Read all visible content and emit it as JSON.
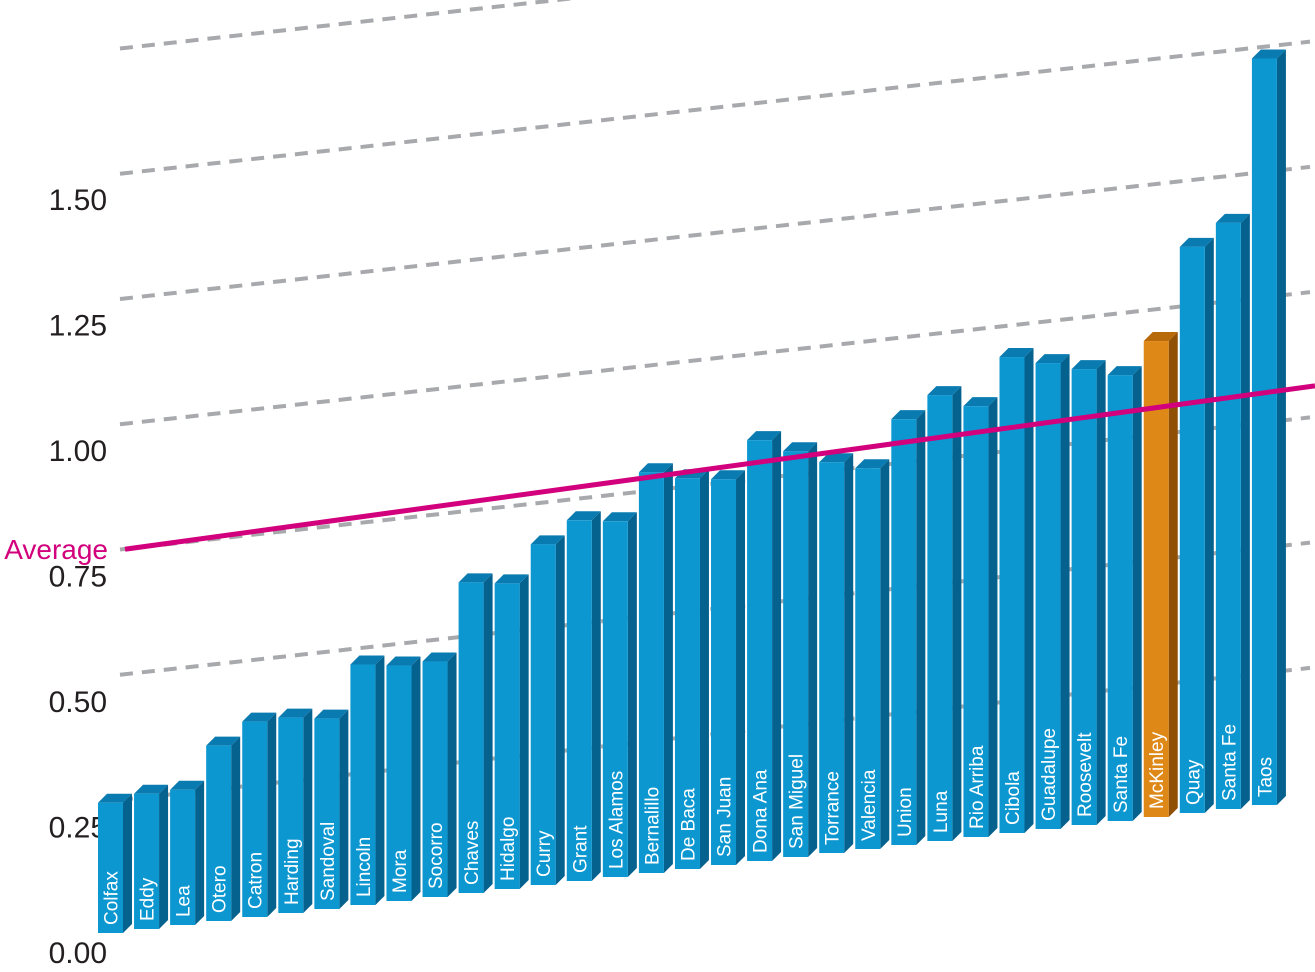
{
  "chart_data": {
    "type": "bar",
    "categories": [
      "Colfax",
      "Eddy",
      "Lea",
      "Otero",
      "Catron",
      "Harding",
      "Sandoval",
      "Lincoln",
      "Mora",
      "Socorro",
      "Chaves",
      "Hidalgo",
      "Curry",
      "Grant",
      "Los Alamos",
      "Bernalillo",
      "De Baca",
      "San Juan",
      "Dona Ana",
      "San Miguel",
      "Torrance",
      "Valencia",
      "Union",
      "Luna",
      "Rio Arriba",
      "Cibola",
      "Guadalupe",
      "Roosevelt",
      "Santa Fe",
      "McKinley",
      "Quay",
      "Santa Fe",
      "Taos"
    ],
    "values": [
      0.26,
      0.27,
      0.27,
      0.35,
      0.39,
      0.39,
      0.38,
      0.48,
      0.47,
      0.47,
      0.62,
      0.61,
      0.68,
      0.72,
      0.71,
      0.8,
      0.78,
      0.77,
      0.84,
      0.81,
      0.78,
      0.76,
      0.85,
      0.89,
      0.86,
      0.95,
      0.93,
      0.91,
      0.89,
      0.95,
      1.13,
      1.17,
      1.49
    ],
    "highlight_index": 29,
    "average": {
      "label": "Average",
      "value": 0.79
    },
    "ylim": [
      0,
      1.75
    ],
    "yticks": [
      "0.00",
      "0.25",
      "0.50",
      "0.75",
      "1.00",
      "1.25",
      "1.50"
    ],
    "ytick_values": [
      0,
      0.25,
      0.5,
      0.75,
      1.0,
      1.25,
      1.5
    ],
    "gridlines": [
      0.25,
      0.5,
      0.75,
      1.0,
      1.25,
      1.5,
      1.75
    ],
    "title": "",
    "xlabel": "",
    "ylabel": "",
    "colors": {
      "bar_front": "#0c97d1",
      "bar_top": "#0a7bb0",
      "bar_side": "#05618d",
      "highlight_front": "#de8818",
      "highlight_top": "#b86a0a",
      "highlight_side": "#8f4f04",
      "average_line": "#d2007c",
      "grid": "#a7a9ac"
    }
  }
}
